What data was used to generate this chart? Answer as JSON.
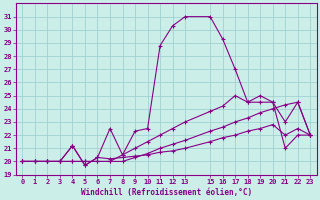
{
  "xlabel": "Windchill (Refroidissement éolien,°C)",
  "xlim": [
    -0.5,
    23.5
  ],
  "ylim": [
    19,
    32
  ],
  "yticks": [
    19,
    20,
    21,
    22,
    23,
    24,
    25,
    26,
    27,
    28,
    29,
    30,
    31
  ],
  "xticks": [
    0,
    1,
    2,
    3,
    4,
    5,
    6,
    7,
    8,
    9,
    10,
    11,
    12,
    13,
    15,
    16,
    17,
    18,
    19,
    20,
    21,
    22,
    23
  ],
  "bg_color": "#cceee8",
  "line_color": "#880088",
  "grid_color": "#99cccc",
  "line1_x": [
    0,
    1,
    2,
    3,
    4,
    5,
    6,
    7,
    8,
    9,
    10,
    11,
    12,
    13,
    15,
    16,
    17,
    18,
    19,
    20,
    21,
    22,
    23
  ],
  "line1_y": [
    20.0,
    20.0,
    20.0,
    20.0,
    20.0,
    20.0,
    20.0,
    20.0,
    20.0,
    20.3,
    20.6,
    21.0,
    21.3,
    21.6,
    22.3,
    22.6,
    23.0,
    23.3,
    23.7,
    24.0,
    24.3,
    24.5,
    22.0
  ],
  "line2_x": [
    0,
    1,
    2,
    3,
    4,
    5,
    6,
    7,
    8,
    9,
    10,
    11,
    12,
    13,
    15,
    16,
    17,
    18,
    19,
    20,
    21,
    22,
    23
  ],
  "line2_y": [
    20.0,
    20.0,
    20.0,
    20.0,
    20.0,
    20.0,
    20.0,
    20.0,
    20.5,
    21.0,
    21.5,
    22.0,
    22.5,
    23.0,
    23.8,
    24.2,
    25.0,
    24.5,
    24.5,
    24.5,
    21.0,
    22.0,
    22.0
  ],
  "line3_x": [
    0,
    1,
    2,
    3,
    4,
    4,
    5,
    6,
    7,
    8,
    9,
    10,
    11,
    12,
    13,
    15,
    16,
    17,
    18,
    19,
    20,
    21,
    22,
    23
  ],
  "line3_y": [
    20.0,
    20.0,
    20.0,
    20.0,
    21.2,
    21.2,
    19.7,
    20.3,
    22.5,
    20.5,
    22.3,
    22.5,
    28.8,
    30.3,
    31.0,
    31.0,
    29.3,
    27.0,
    24.5,
    25.0,
    24.5,
    23.0,
    24.5,
    22.0
  ],
  "line4_x": [
    0,
    1,
    2,
    3,
    4,
    5,
    6,
    7,
    8,
    9,
    10,
    11,
    12,
    13,
    15,
    16,
    17,
    18,
    19,
    20,
    21,
    22,
    23
  ],
  "line4_y": [
    20.0,
    20.0,
    20.0,
    20.0,
    21.2,
    19.7,
    20.3,
    20.2,
    20.3,
    20.4,
    20.5,
    20.7,
    20.8,
    21.0,
    21.5,
    21.8,
    22.0,
    22.3,
    22.5,
    22.8,
    22.0,
    22.5,
    22.0
  ]
}
